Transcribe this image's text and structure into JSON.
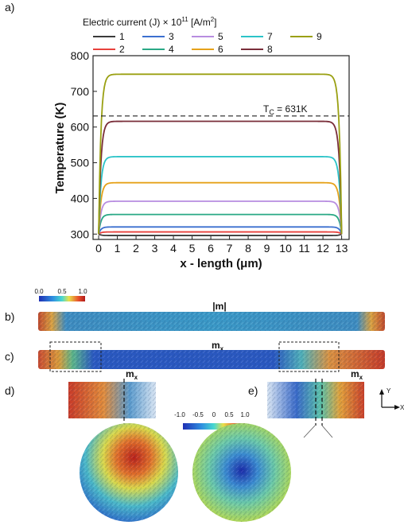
{
  "labels": {
    "a": "a)",
    "b": "b)",
    "c": "c)",
    "d": "d)",
    "e": "e)"
  },
  "chart_data": {
    "type": "line",
    "title": "",
    "xlabel": "x - length (μm)",
    "ylabel": "Temperature (K)",
    "xlim": [
      -0.3,
      13.4
    ],
    "ylim": [
      285,
      800
    ],
    "xticks": [
      0,
      1,
      2,
      3,
      4,
      5,
      6,
      7,
      8,
      9,
      10,
      11,
      12,
      13
    ],
    "yticks": [
      300,
      400,
      500,
      600,
      700,
      800
    ],
    "legend_title": "Electric current (J) × 10¹¹ [A/m²]",
    "legend_placement": "top",
    "grid": false,
    "series": [
      {
        "name": "1",
        "color": "#3a3a3a",
        "plateau": 296
      },
      {
        "name": "2",
        "color": "#e8413c",
        "plateau": 306
      },
      {
        "name": "3",
        "color": "#3b6fcf",
        "plateau": 320
      },
      {
        "name": "4",
        "color": "#2aa886",
        "plateau": 355
      },
      {
        "name": "5",
        "color": "#b88de0",
        "plateau": 392
      },
      {
        "name": "6",
        "color": "#e6a21a",
        "plateau": 444
      },
      {
        "name": "7",
        "color": "#2cc4c8",
        "plateau": 517
      },
      {
        "name": "8",
        "color": "#7a2e3a",
        "plateau": 616
      },
      {
        "name": "9",
        "color": "#9aa012",
        "plateau": 748
      }
    ],
    "edge_temperature": 300,
    "reference_line": {
      "y": 631,
      "label": "T",
      "label_sub": "C",
      "label_rest": " = 631K"
    }
  },
  "colorbar_top": {
    "ticks": [
      "0.0",
      "0.5",
      "1.0"
    ]
  },
  "colorbar_mid": {
    "ticks": [
      "-1.0",
      "-0.5",
      "0",
      "0.5",
      "1.0"
    ]
  },
  "wire_labels": {
    "b": "|m|",
    "c_main": "m",
    "c_sub": "x",
    "d_main": "m",
    "d_sub": "x",
    "e_main": "m",
    "e_sub": "x"
  },
  "axes_indicator": {
    "y": "Y",
    "x": "X"
  }
}
